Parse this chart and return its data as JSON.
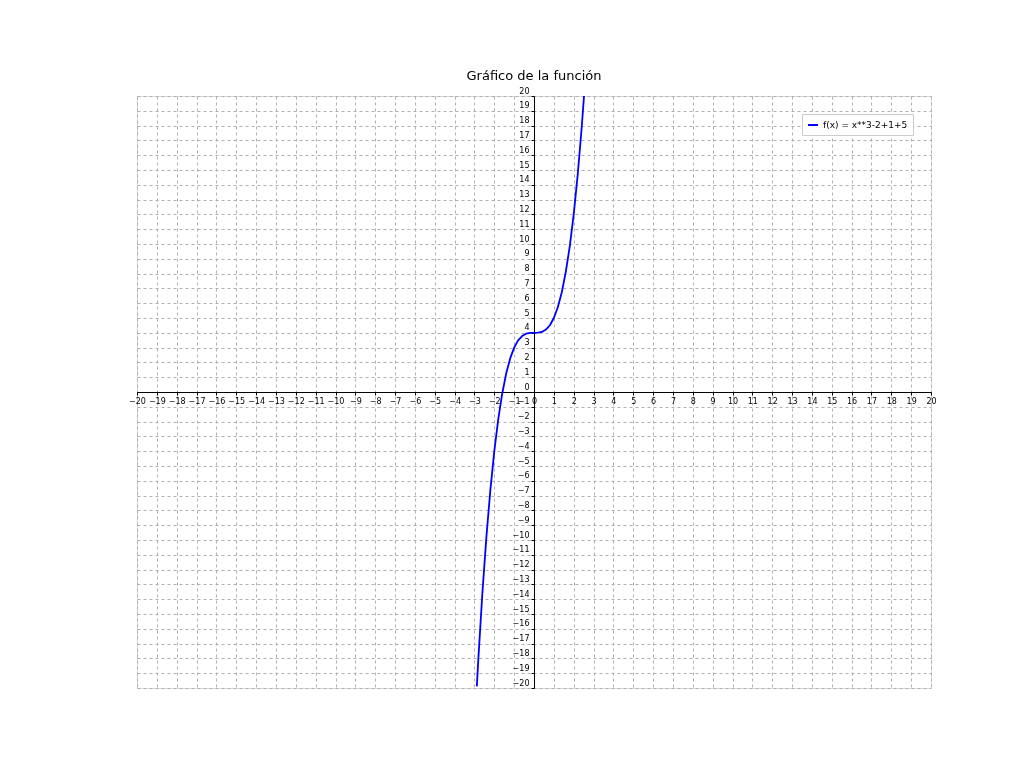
{
  "chart_data": {
    "type": "line",
    "title": "Gráfico de la función",
    "x": [
      -2.88,
      -2.8,
      -2.6,
      -2.4,
      -2.2,
      -2.0,
      -1.8,
      -1.6,
      -1.4,
      -1.2,
      -1.0,
      -0.8,
      -0.6,
      -0.4,
      -0.2,
      0,
      0.2,
      0.4,
      0.6,
      0.8,
      1.0,
      1.2,
      1.4,
      1.6,
      1.8,
      2.0,
      2.2,
      2.4,
      2.52
    ],
    "series": [
      {
        "name": "f(x) = x**3-2+1+5",
        "color": "#0000ff",
        "values": [
          -19.89,
          -17.95,
          -13.58,
          -9.82,
          -6.65,
          -4,
          -1.83,
          -0.1,
          1.26,
          2.27,
          3,
          3.49,
          3.78,
          3.94,
          3.99,
          4,
          4.01,
          4.06,
          4.22,
          4.51,
          5,
          5.73,
          6.74,
          8.1,
          9.83,
          12,
          14.65,
          17.82,
          20
        ]
      }
    ],
    "xlim": [
      -20,
      20
    ],
    "ylim": [
      -20,
      20
    ],
    "xticks": [
      -20,
      -19,
      -18,
      -17,
      -16,
      -15,
      -14,
      -13,
      -12,
      -11,
      -10,
      -9,
      -8,
      -7,
      -6,
      -5,
      -4,
      -3,
      -2,
      -1,
      0,
      1,
      2,
      3,
      4,
      5,
      6,
      7,
      8,
      9,
      10,
      11,
      12,
      13,
      14,
      15,
      16,
      17,
      18,
      19,
      20
    ],
    "yticks": [
      -20,
      -19,
      -18,
      -17,
      -16,
      -15,
      -14,
      -13,
      -12,
      -11,
      -10,
      -9,
      -8,
      -7,
      -6,
      -5,
      -4,
      -3,
      -2,
      -1,
      0,
      1,
      2,
      3,
      4,
      5,
      6,
      7,
      8,
      9,
      10,
      11,
      12,
      13,
      14,
      15,
      16,
      17,
      18,
      19,
      20
    ],
    "grid": true,
    "legend": "top right",
    "line_style": "solid",
    "marker": "none"
  }
}
